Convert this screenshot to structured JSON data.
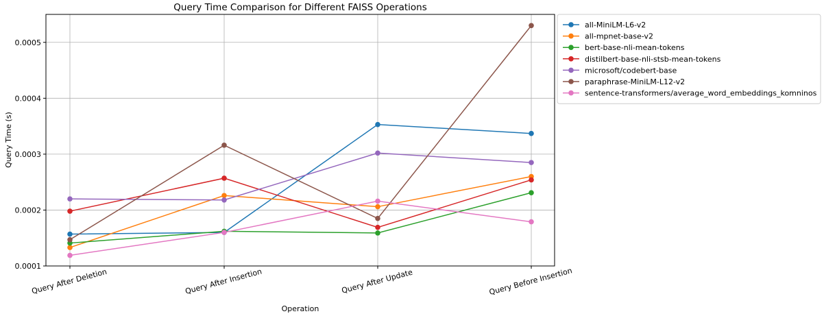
{
  "chart_data": {
    "type": "line",
    "title": "Query Time Comparison for Different FAISS Operations",
    "xlabel": "Operation",
    "ylabel": "Query Time (s)",
    "categories": [
      "Query After Deletion",
      "Query After Insertion",
      "Query After Update",
      "Query Before Insertion"
    ],
    "ylim": [
      0.0001,
      0.00055
    ],
    "yticks": [
      "0.0001",
      "0.0002",
      "0.0003",
      "0.0004",
      "0.0005"
    ],
    "ytick_values": [
      0.0001,
      0.0002,
      0.0003,
      0.0004,
      0.0005
    ],
    "grid": true,
    "legend_position": "outside-right",
    "series": [
      {
        "name": "all-MiniLM-L6-v2",
        "color": "#1f77b4",
        "values": [
          0.000157,
          0.00016,
          0.000353,
          0.000337
        ]
      },
      {
        "name": "all-mpnet-base-v2",
        "color": "#ff7f0e",
        "values": [
          0.000133,
          0.000226,
          0.000206,
          0.00026
        ]
      },
      {
        "name": "bert-base-nli-mean-tokens",
        "color": "#2ca02c",
        "values": [
          0.000141,
          0.000162,
          0.000159,
          0.000231
        ]
      },
      {
        "name": "distilbert-base-nli-stsb-mean-tokens",
        "color": "#d62728",
        "values": [
          0.000198,
          0.000257,
          0.000169,
          0.000254
        ]
      },
      {
        "name": "microsoft/codebert-base",
        "color": "#9467bd",
        "values": [
          0.00022,
          0.000218,
          0.000302,
          0.000285
        ]
      },
      {
        "name": "paraphrase-MiniLM-L12-v2",
        "color": "#8c564b",
        "values": [
          0.000147,
          0.000316,
          0.000185,
          0.00053
        ]
      },
      {
        "name": "sentence-transformers/average_word_embeddings_komninos",
        "color": "#e377c2",
        "values": [
          0.000119,
          0.00016,
          0.000216,
          0.000179
        ]
      }
    ]
  }
}
